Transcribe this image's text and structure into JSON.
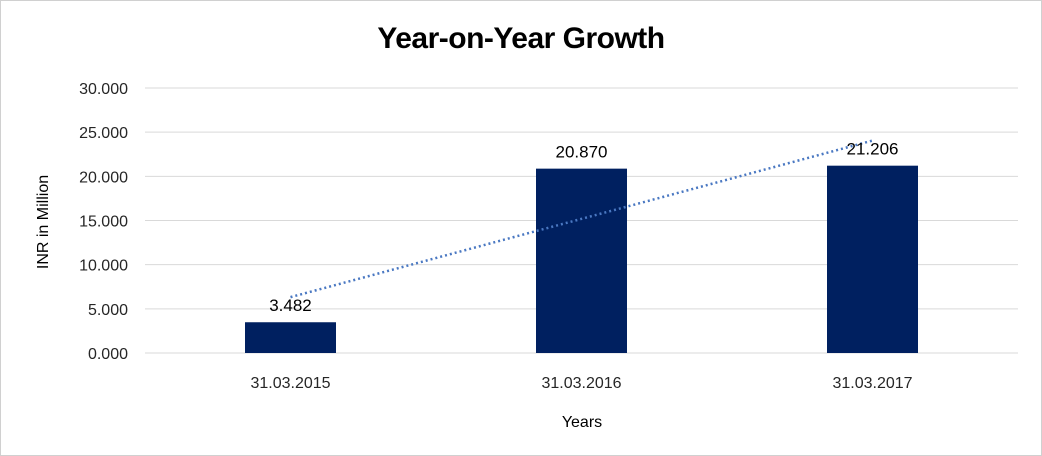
{
  "chart_data": {
    "type": "bar",
    "title": "Year-on-Year Growth",
    "xlabel": "Years",
    "ylabel": "INR in Million",
    "categories": [
      "31.03.2015",
      "31.03.2016",
      "31.03.2017"
    ],
    "values": [
      3.482,
      20.87,
      21.206
    ],
    "data_labels": [
      "3.482",
      "20.870",
      "21.206"
    ],
    "ylim": [
      0,
      30
    ],
    "y_ticks": [
      0,
      5,
      10,
      15,
      20,
      25,
      30
    ],
    "y_tick_labels": [
      "0.000",
      "5.000",
      "10.000",
      "15.000",
      "20.000",
      "25.000",
      "30.000"
    ],
    "grid": true,
    "legend": "none",
    "trendline": {
      "type": "linear",
      "style": "dotted",
      "color": "#4a78c2"
    },
    "bar_color": "#002060",
    "grid_color": "#d9d9d9"
  }
}
